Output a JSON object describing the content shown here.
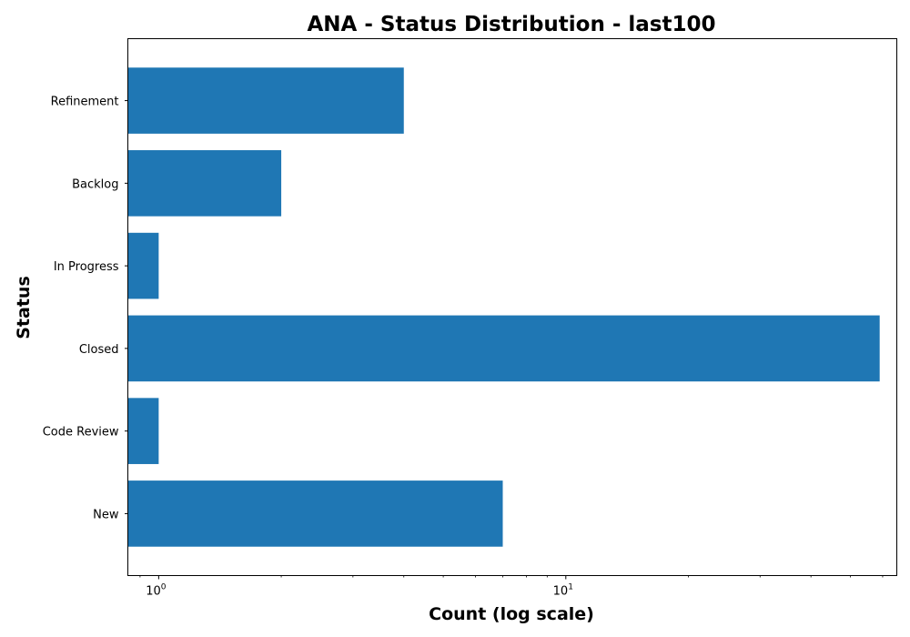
{
  "chart_data": {
    "type": "bar",
    "orientation": "horizontal",
    "title": "ANA - Status Distribution - last100",
    "xlabel": "Count (log scale)",
    "ylabel": "Status",
    "xscale": "log",
    "xlim": [
      0.84,
      65
    ],
    "categories": [
      "New",
      "Code Review",
      "Closed",
      "In Progress",
      "Backlog",
      "Refinement"
    ],
    "values": [
      7,
      1,
      59,
      1,
      2,
      4
    ],
    "x_major_ticks": [
      {
        "value": 1,
        "base": "10",
        "exp": "0"
      },
      {
        "value": 10,
        "base": "10",
        "exp": "1"
      }
    ],
    "bar_color": "#1f77b4",
    "grid": false
  }
}
